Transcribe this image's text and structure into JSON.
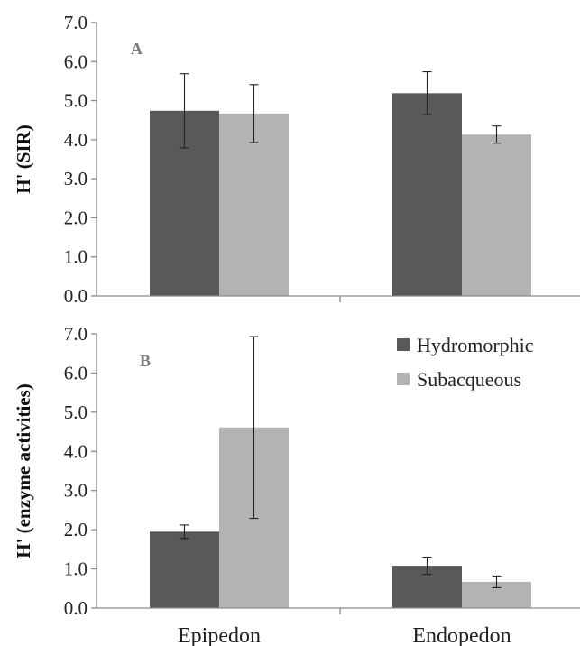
{
  "chart_data": [
    {
      "type": "bar",
      "panel_label": "A",
      "ylabel": "H' (SIR)",
      "ylim": [
        0,
        7
      ],
      "yticks": [
        "0.0",
        "1.0",
        "2.0",
        "3.0",
        "4.0",
        "5.0",
        "6.0",
        "7.0"
      ],
      "categories": [
        "Epipedon",
        "Endopedon"
      ],
      "series": [
        {
          "name": "Hydromorphic",
          "color": "#595959",
          "values": [
            4.74,
            5.19
          ],
          "error": [
            0.95,
            0.55
          ]
        },
        {
          "name": "Subacqueous",
          "color": "#b3b3b3",
          "values": [
            4.67,
            4.13
          ],
          "error": [
            0.74,
            0.22
          ]
        }
      ]
    },
    {
      "type": "bar",
      "panel_label": "B",
      "ylabel": "H' (enzyme activities)",
      "ylim": [
        0,
        7
      ],
      "yticks": [
        "0.0",
        "1.0",
        "2.0",
        "3.0",
        "4.0",
        "5.0",
        "6.0",
        "7.0"
      ],
      "categories": [
        "Epipedon",
        "Endopedon"
      ],
      "series": [
        {
          "name": "Hydromorphic",
          "color": "#595959",
          "values": [
            1.95,
            1.08
          ],
          "error": [
            0.17,
            0.22
          ]
        },
        {
          "name": "Subacqueous",
          "color": "#b3b3b3",
          "values": [
            4.61,
            0.67
          ],
          "error": [
            2.32,
            0.15
          ]
        }
      ],
      "legend": {
        "position": "top-right",
        "entries": [
          "Hydromorphic",
          "Subacqueous"
        ]
      }
    }
  ]
}
